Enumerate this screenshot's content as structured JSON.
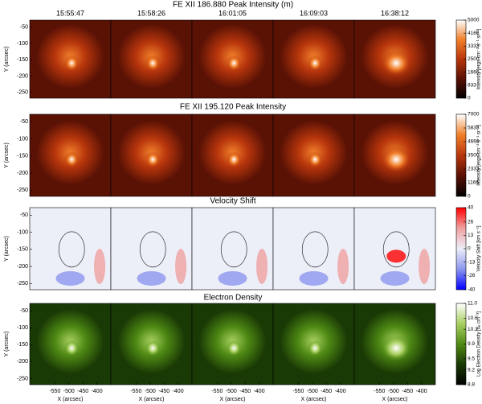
{
  "chart_data": [
    {
      "type": "heatmap",
      "title": "FE XII 186.880 Peak Intensity (m)",
      "panels": [
        "15:55:47",
        "15:58:26",
        "16:01:05",
        "16:09:03",
        "16:38:12"
      ],
      "ylabel": "Y (arcsec)",
      "xlim": [
        -640,
        -350
      ],
      "ylim": [
        -268,
        -28
      ],
      "yticks": [
        -50,
        -100,
        -150,
        -200,
        -250
      ],
      "colorbar": {
        "label": "Intensity [ergs cm⁻² s⁻¹ sr⁻¹]",
        "lim": [
          0,
          5000
        ],
        "ticks": [
          0,
          833,
          1666,
          2500,
          3333,
          4166,
          5000
        ],
        "colors": [
          "#000000",
          "#5a1205",
          "#b8360c",
          "#f0802a",
          "#ffffff"
        ]
      }
    },
    {
      "type": "heatmap",
      "title": "FE XII 195.120 Peak Intensity",
      "ylabel": "Y (arcsec)",
      "xlim": [
        -640,
        -350
      ],
      "ylim": [
        -268,
        -28
      ],
      "yticks": [
        -50,
        -100,
        -150,
        -200,
        -250
      ],
      "colorbar": {
        "label": "Intensity [ergs cm⁻² s⁻¹ sr⁻¹]",
        "lim": [
          0,
          7000
        ],
        "ticks": [
          0,
          1166,
          2333,
          3500,
          4666,
          5833,
          7000
        ],
        "colors": [
          "#000000",
          "#5a1205",
          "#b8360c",
          "#f0802a",
          "#ffffff"
        ]
      }
    },
    {
      "type": "heatmap",
      "title": "Velocity Shift",
      "ylabel": "Y (arcsec)",
      "xlim": [
        -640,
        -350
      ],
      "ylim": [
        -268,
        -28
      ],
      "yticks": [
        -50,
        -100,
        -150,
        -200,
        -250
      ],
      "colorbar": {
        "label": "Velocity Shift [km s⁻¹]",
        "lim": [
          -40,
          40
        ],
        "ticks": [
          -40,
          -26,
          -13,
          0,
          13,
          26,
          40
        ],
        "colors": [
          "#0000ff",
          "#8c96ee",
          "#eceef8",
          "#f0a0a0",
          "#ff0000"
        ]
      }
    },
    {
      "type": "heatmap",
      "title": "Electron Density",
      "ylabel": "Y (arcsec)",
      "xlabel": "X (arcsec)",
      "xlim": [
        -640,
        -350
      ],
      "ylim": [
        -268,
        -28
      ],
      "yticks": [
        -50,
        -100,
        -150,
        -200,
        -250
      ],
      "xticks": [
        -550,
        -500,
        -450,
        -400
      ],
      "colorbar": {
        "label": "Log Electron Density [nₑ cm⁻³]",
        "lim": [
          8.8,
          11
        ],
        "ticks": [
          8.8,
          9.2,
          9.5,
          9.9,
          10.3,
          10.6,
          {
            "value": 11,
            "label": "11.0"
          }
        ],
        "colors": [
          "#000000",
          "#1a3a05",
          "#4f8a14",
          "#a8d060",
          "#ffffff"
        ]
      }
    }
  ]
}
